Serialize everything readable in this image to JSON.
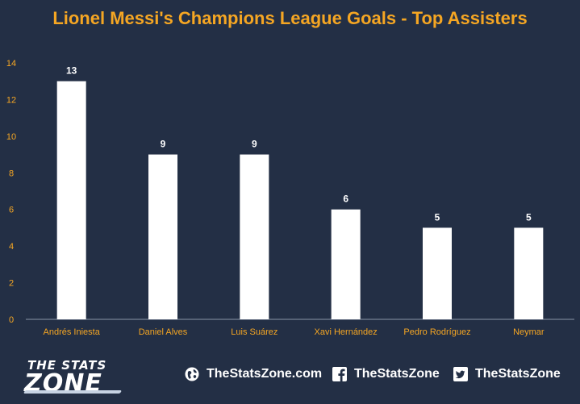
{
  "chart_data": {
    "type": "bar",
    "title": "Lionel Messi's Champions League Goals - Top Assisters",
    "categories": [
      "Andrés Iniesta",
      "Daniel Alves",
      "Luis Suárez",
      "Xavi Hernández",
      "Pedro Rodríguez",
      "Neymar"
    ],
    "values": [
      13,
      9,
      9,
      6,
      5,
      5
    ],
    "data_labels": [
      "13",
      "9",
      "9",
      "6",
      "5",
      "5"
    ],
    "ylim": [
      0,
      14
    ],
    "yticks": [
      0,
      2,
      4,
      6,
      8,
      10,
      12,
      14
    ],
    "xlabel": "",
    "ylabel": "",
    "grid": false,
    "legend": "none",
    "colors": {
      "background": "#232f45",
      "bar": "#ffffff",
      "title": "#f5a623",
      "tick_label": "#f5a623",
      "data_label": "#ffffff",
      "axis": "#8a96a8"
    }
  },
  "footer": {
    "logo_line1": "THE STATS",
    "logo_line2": "ZONE",
    "website": "TheStatsZone.com",
    "facebook": "TheStatsZone",
    "twitter": "TheStatsZone",
    "website_icon": "globe-icon",
    "facebook_icon": "facebook-icon",
    "twitter_icon": "twitter-icon"
  }
}
